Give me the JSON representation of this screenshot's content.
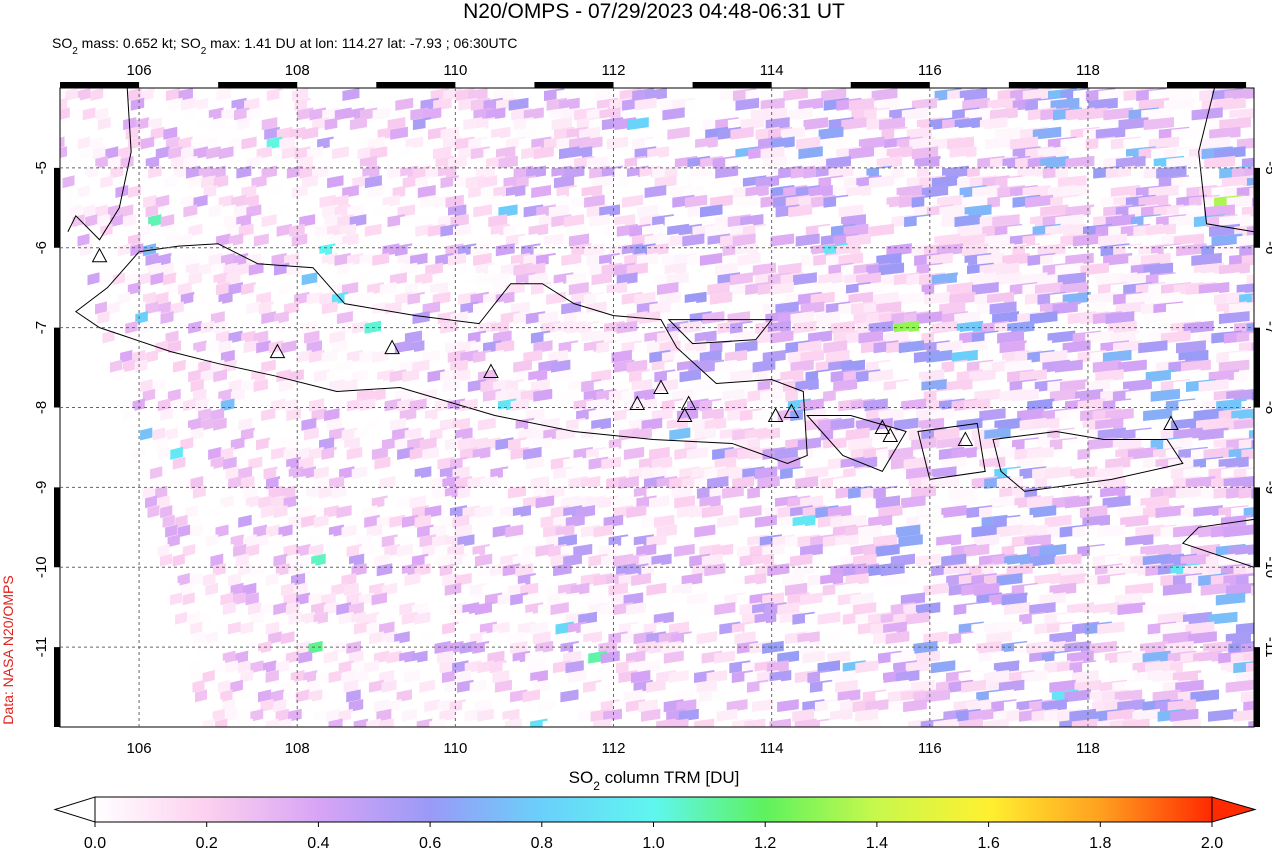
{
  "chart_data": {
    "type": "map",
    "title": "N20/OMPS - 07/29/2023 04:48-06:31 UT",
    "subtitle": [
      "SO",
      "2",
      " mass: 0.652 kt; SO",
      "2",
      " max: 1.41 DU at lon: 114.27 lat: -7.93 ; 06:30UTC"
    ],
    "credit": "Data: NASA N20/OMPS",
    "xlim": [
      105,
      120.1
    ],
    "ylim": [
      -12,
      -4
    ],
    "xticks": [
      106,
      108,
      110,
      112,
      114,
      116,
      118
    ],
    "yticks": [
      -5,
      -6,
      -7,
      -8,
      -9,
      -10,
      -11
    ],
    "grid": true,
    "colorbar": {
      "label": [
        "SO",
        "2",
        " column TRM [DU]"
      ],
      "lim": [
        0,
        2
      ],
      "ticks": [
        {
          "value": 0,
          "label": "0.0"
        },
        0.2,
        0.4,
        0.6,
        0.8,
        {
          "value": 1,
          "label": "1.0"
        },
        1.2,
        1.4,
        1.6,
        1.8,
        {
          "value": 2,
          "label": "2.0"
        }
      ],
      "colors": [
        "#ffffff",
        "#fcd0ef",
        "#d8a4f5",
        "#9a9af6",
        "#6ad0fa",
        "#5ff6f0",
        "#5ef25e",
        "#c8f84c",
        "#fff030",
        "#ffa020",
        "#ff2a00"
      ]
    }
  }
}
